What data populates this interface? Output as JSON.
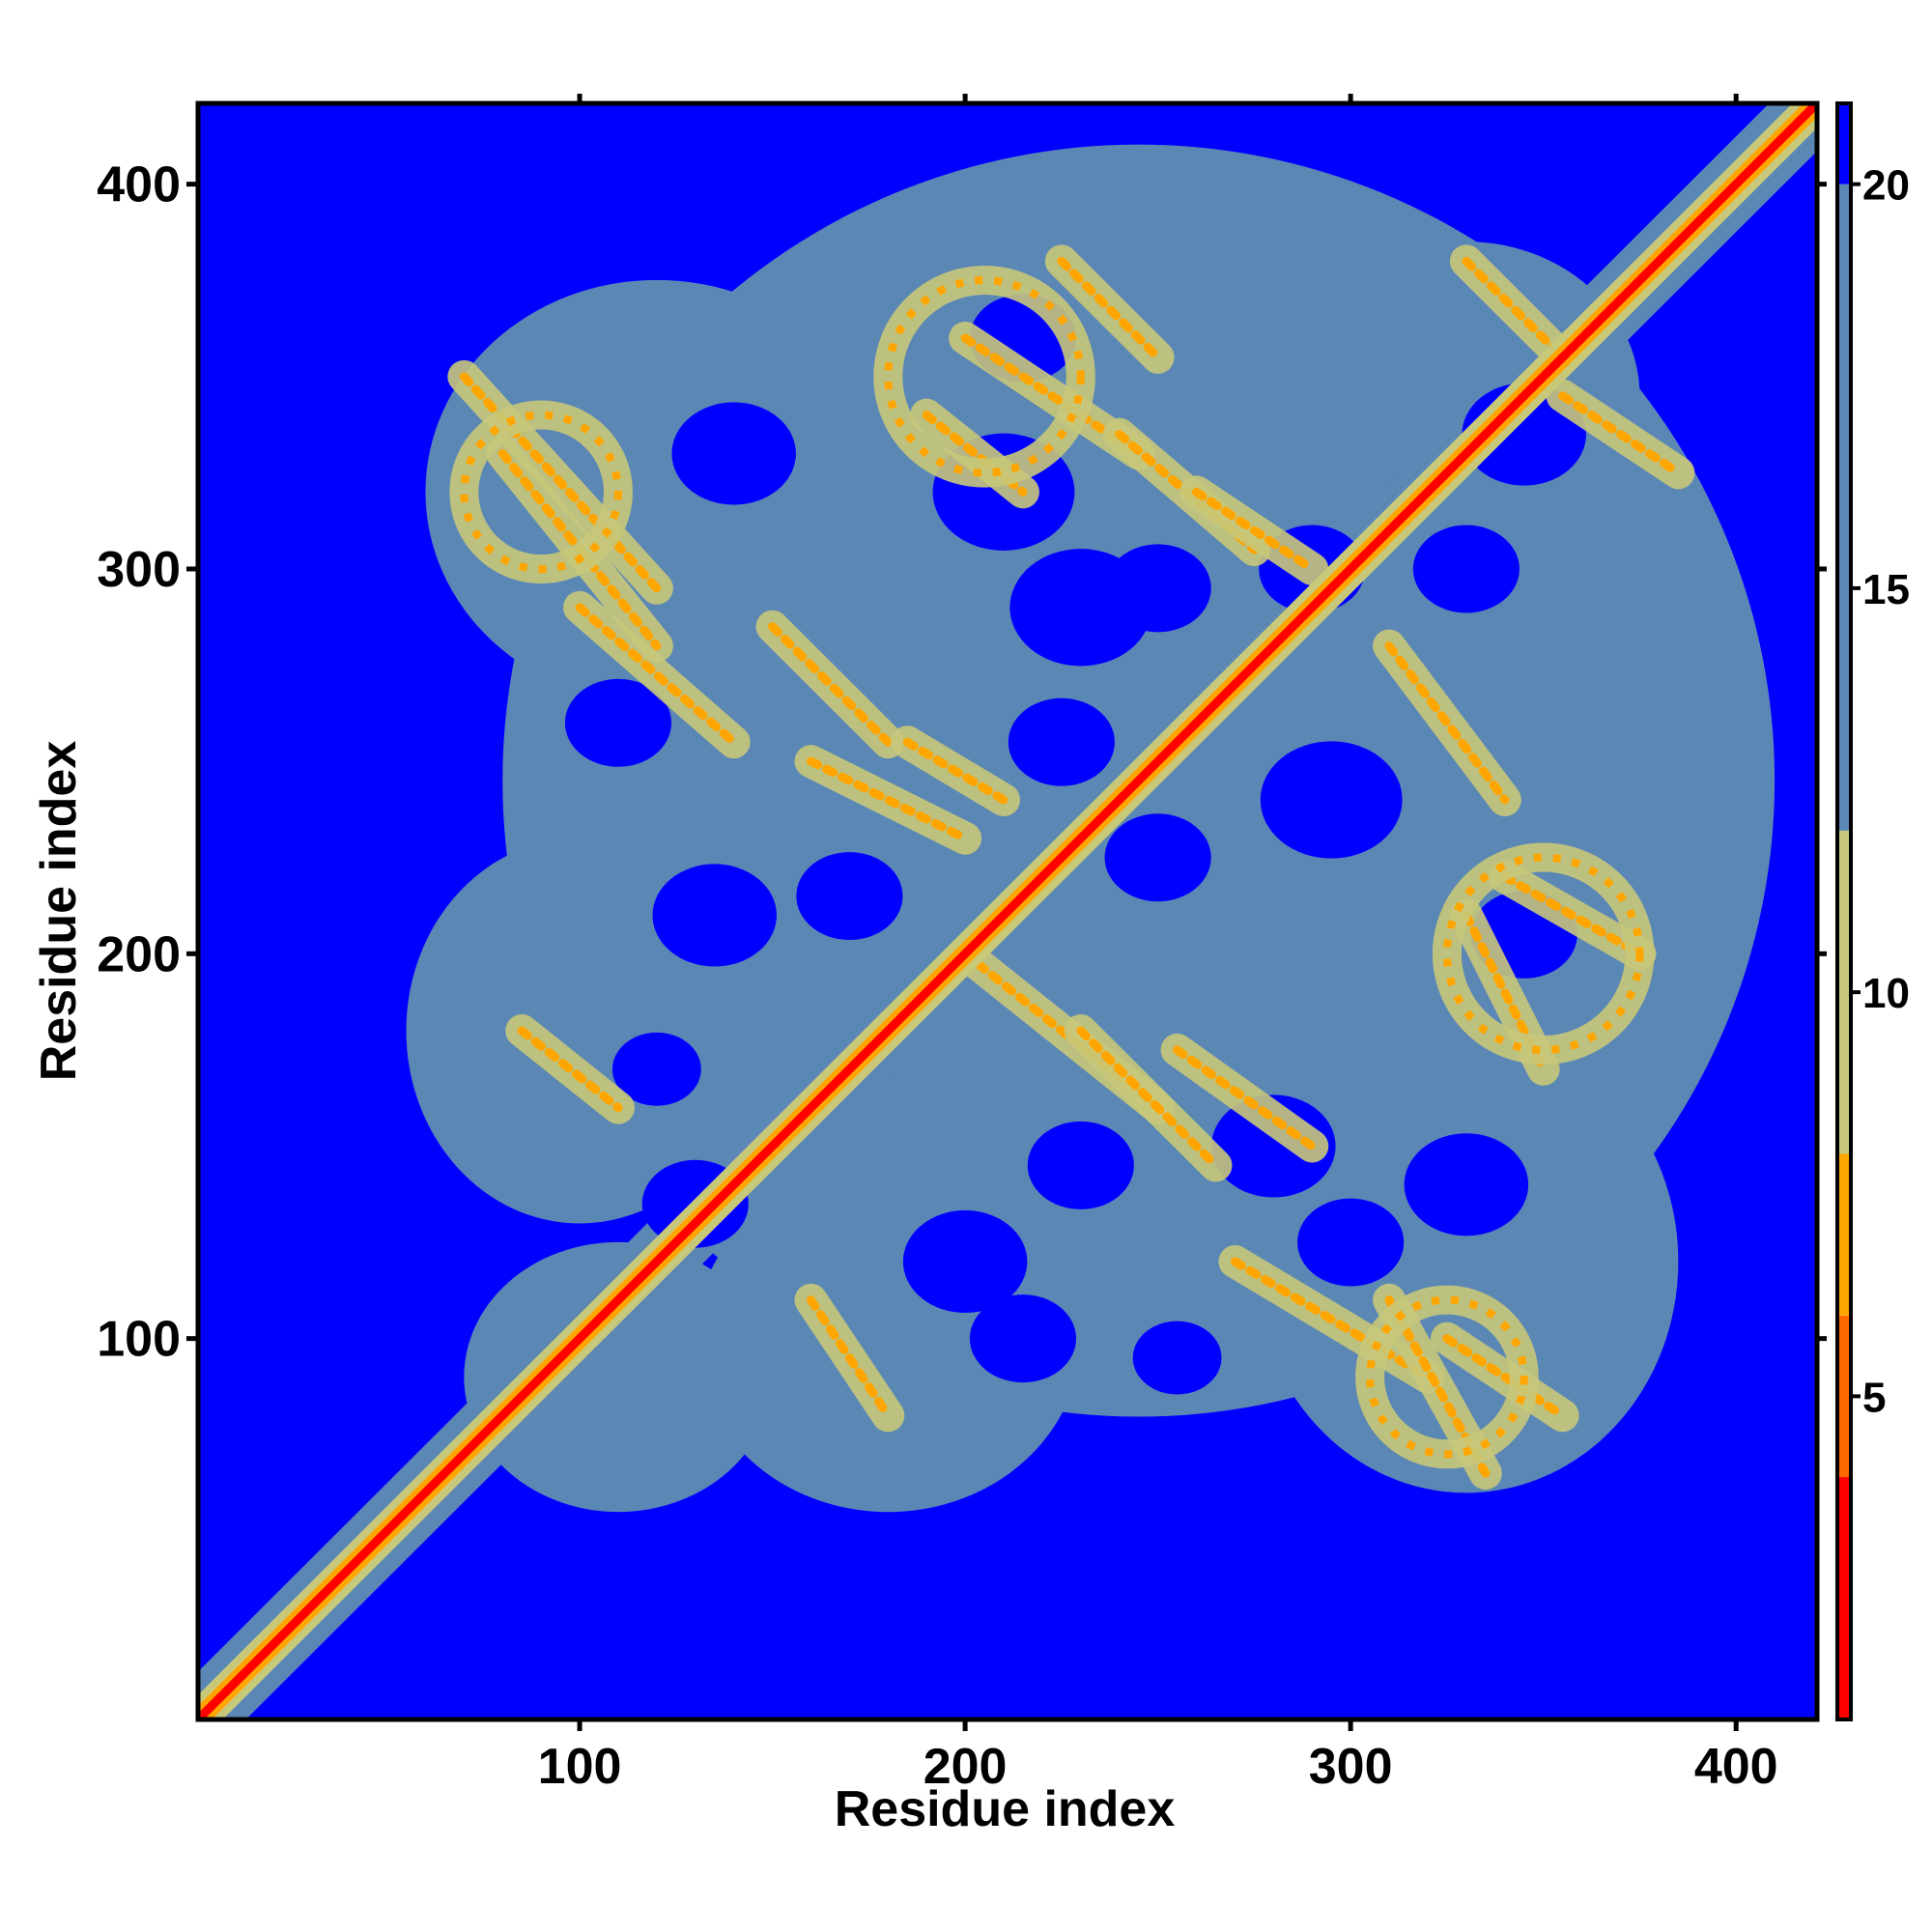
{
  "chart_data": {
    "type": "heatmap",
    "title": "",
    "xlabel": "Residue index",
    "ylabel": "Residue index",
    "xlim": [
      1,
      421
    ],
    "ylim": [
      1,
      421
    ],
    "x_ticks": [
      100,
      200,
      300,
      400
    ],
    "y_ticks": [
      100,
      200,
      300,
      400
    ],
    "x_tick_labels": [
      "100",
      "200",
      "300",
      "400"
    ],
    "y_tick_labels": [
      "100",
      "200",
      "300",
      "400"
    ],
    "grid": false,
    "legend": "none",
    "colorbar": {
      "range": [
        1,
        21
      ],
      "ticks": [
        5,
        10,
        15,
        20
      ],
      "tick_labels": [
        "5",
        "10",
        "15",
        "20"
      ],
      "colors": [
        {
          "from": 1,
          "to": 4,
          "color": "#ff0000"
        },
        {
          "from": 4,
          "to": 6,
          "color": "#ff6a00"
        },
        {
          "from": 6,
          "to": 8,
          "color": "#ffa500"
        },
        {
          "from": 8,
          "to": 12,
          "color": "#c8c87a"
        },
        {
          "from": 12,
          "to": 20,
          "color": "#5b87b5"
        },
        {
          "from": 20,
          "to": 21,
          "color": "#0000ff"
        }
      ]
    },
    "colors": {
      "far": "#0000ff",
      "mid": "#5b87b5",
      "near": "#c8c87a",
      "close": "#ffa500",
      "contact": "#ff0000"
    },
    "description_values": {
      "diagonal_distance": 1,
      "background_distance": 21
    },
    "contact_bands": [
      {
        "x1": 70,
        "y1": 350,
        "x2": 120,
        "y2": 295
      },
      {
        "x1": 80,
        "y1": 330,
        "x2": 120,
        "y2": 280
      },
      {
        "x1": 100,
        "y1": 290,
        "x2": 140,
        "y2": 255
      },
      {
        "x1": 150,
        "y1": 285,
        "x2": 180,
        "y2": 255
      },
      {
        "x1": 160,
        "y1": 250,
        "x2": 200,
        "y2": 230
      },
      {
        "x1": 185,
        "y1": 255,
        "x2": 210,
        "y2": 240
      },
      {
        "x1": 200,
        "y1": 360,
        "x2": 245,
        "y2": 330
      },
      {
        "x1": 225,
        "y1": 380,
        "x2": 250,
        "y2": 355
      },
      {
        "x1": 190,
        "y1": 340,
        "x2": 215,
        "y2": 320
      },
      {
        "x1": 240,
        "y1": 335,
        "x2": 275,
        "y2": 305
      },
      {
        "x1": 260,
        "y1": 320,
        "x2": 290,
        "y2": 300
      },
      {
        "x1": 85,
        "y1": 180,
        "x2": 110,
        "y2": 160
      },
      {
        "x1": 160,
        "y1": 110,
        "x2": 180,
        "y2": 80
      },
      {
        "x1": 200,
        "y1": 200,
        "x2": 250,
        "y2": 160
      },
      {
        "x1": 230,
        "y1": 180,
        "x2": 265,
        "y2": 145
      },
      {
        "x1": 255,
        "y1": 175,
        "x2": 290,
        "y2": 150
      },
      {
        "x1": 270,
        "y1": 120,
        "x2": 320,
        "y2": 90
      },
      {
        "x1": 310,
        "y1": 110,
        "x2": 335,
        "y2": 65
      },
      {
        "x1": 325,
        "y1": 100,
        "x2": 355,
        "y2": 80
      },
      {
        "x1": 310,
        "y1": 280,
        "x2": 340,
        "y2": 240
      },
      {
        "x1": 340,
        "y1": 220,
        "x2": 375,
        "y2": 200
      },
      {
        "x1": 330,
        "y1": 210,
        "x2": 350,
        "y2": 170
      },
      {
        "x1": 330,
        "y1": 380,
        "x2": 355,
        "y2": 355
      },
      {
        "x1": 355,
        "y1": 345,
        "x2": 385,
        "y2": 325
      }
    ],
    "contact_rings": [
      {
        "cx": 205,
        "cy": 350,
        "r": 25
      },
      {
        "cx": 350,
        "cy": 200,
        "r": 25
      },
      {
        "cx": 90,
        "cy": 320,
        "r": 20
      },
      {
        "cx": 325,
        "cy": 90,
        "r": 20
      }
    ],
    "far_islands": [
      {
        "x": 215,
        "y": 360,
        "r": 12
      },
      {
        "x": 345,
        "y": 335,
        "r": 14
      },
      {
        "x": 345,
        "y": 205,
        "r": 12
      },
      {
        "x": 110,
        "y": 260,
        "r": 12
      },
      {
        "x": 230,
        "y": 290,
        "r": 16
      },
      {
        "x": 250,
        "y": 295,
        "r": 12
      },
      {
        "x": 210,
        "y": 320,
        "r": 16
      },
      {
        "x": 140,
        "y": 330,
        "r": 14
      },
      {
        "x": 290,
        "y": 300,
        "r": 12
      },
      {
        "x": 330,
        "y": 300,
        "r": 12
      },
      {
        "x": 295,
        "y": 240,
        "r": 16
      },
      {
        "x": 170,
        "y": 215,
        "r": 12
      },
      {
        "x": 135,
        "y": 210,
        "r": 14
      },
      {
        "x": 250,
        "y": 225,
        "r": 12
      },
      {
        "x": 280,
        "y": 150,
        "r": 14
      },
      {
        "x": 300,
        "y": 125,
        "r": 12
      },
      {
        "x": 230,
        "y": 145,
        "r": 12
      },
      {
        "x": 200,
        "y": 120,
        "r": 14
      },
      {
        "x": 130,
        "y": 135,
        "r": 12
      },
      {
        "x": 215,
        "y": 100,
        "r": 12
      },
      {
        "x": 255,
        "y": 95,
        "r": 10
      },
      {
        "x": 330,
        "y": 140,
        "r": 14
      },
      {
        "x": 225,
        "y": 255,
        "r": 12
      },
      {
        "x": 120,
        "y": 170,
        "r": 10
      }
    ]
  }
}
